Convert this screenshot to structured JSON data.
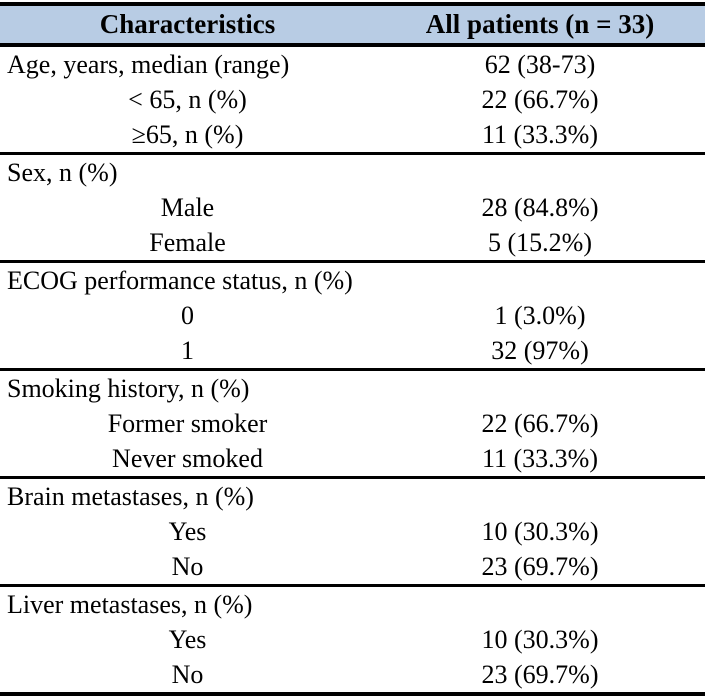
{
  "colors": {
    "header_bg": "#B8CCE4",
    "border": "#000000",
    "text": "#000000"
  },
  "table": {
    "columns": [
      "Characteristics",
      "All patients (n = 33)"
    ],
    "rows": [
      {
        "label": "Age, years, median (range)",
        "value": "62 (38-73)",
        "indent": "category"
      },
      {
        "label": "< 65, n (%)",
        "value": "22 (66.7%)",
        "indent": "sub"
      },
      {
        "label": "≥65, n (%)",
        "value": "11 (33.3%)",
        "indent": "sub",
        "section_end": true
      },
      {
        "label": "Sex, n (%)",
        "value": "",
        "indent": "category"
      },
      {
        "label": "Male",
        "value": "28 (84.8%)",
        "indent": "sub"
      },
      {
        "label": "Female",
        "value": "5 (15.2%)",
        "indent": "sub",
        "section_end": true
      },
      {
        "label": "ECOG performance status, n (%)",
        "value": "",
        "indent": "category"
      },
      {
        "label": "0",
        "value": "1 (3.0%)",
        "indent": "sub"
      },
      {
        "label": "1",
        "value": "32 (97%)",
        "indent": "sub",
        "section_end": true
      },
      {
        "label": "Smoking history, n (%)",
        "value": "",
        "indent": "category"
      },
      {
        "label": "Former smoker",
        "value": "22 (66.7%)",
        "indent": "sub"
      },
      {
        "label": "Never smoked",
        "value": "11 (33.3%)",
        "indent": "sub",
        "section_end": true
      },
      {
        "label": "Brain metastases, n (%)",
        "value": "",
        "indent": "category"
      },
      {
        "label": "Yes",
        "value": "10 (30.3%)",
        "indent": "sub"
      },
      {
        "label": "No",
        "value": "23 (69.7%)",
        "indent": "sub",
        "section_end": true
      },
      {
        "label": "Liver metastases, n (%)",
        "value": "",
        "indent": "category"
      },
      {
        "label": "Yes",
        "value": "10 (30.3%)",
        "indent": "sub"
      },
      {
        "label": "No",
        "value": "23 (69.7%)",
        "indent": "sub"
      }
    ]
  }
}
